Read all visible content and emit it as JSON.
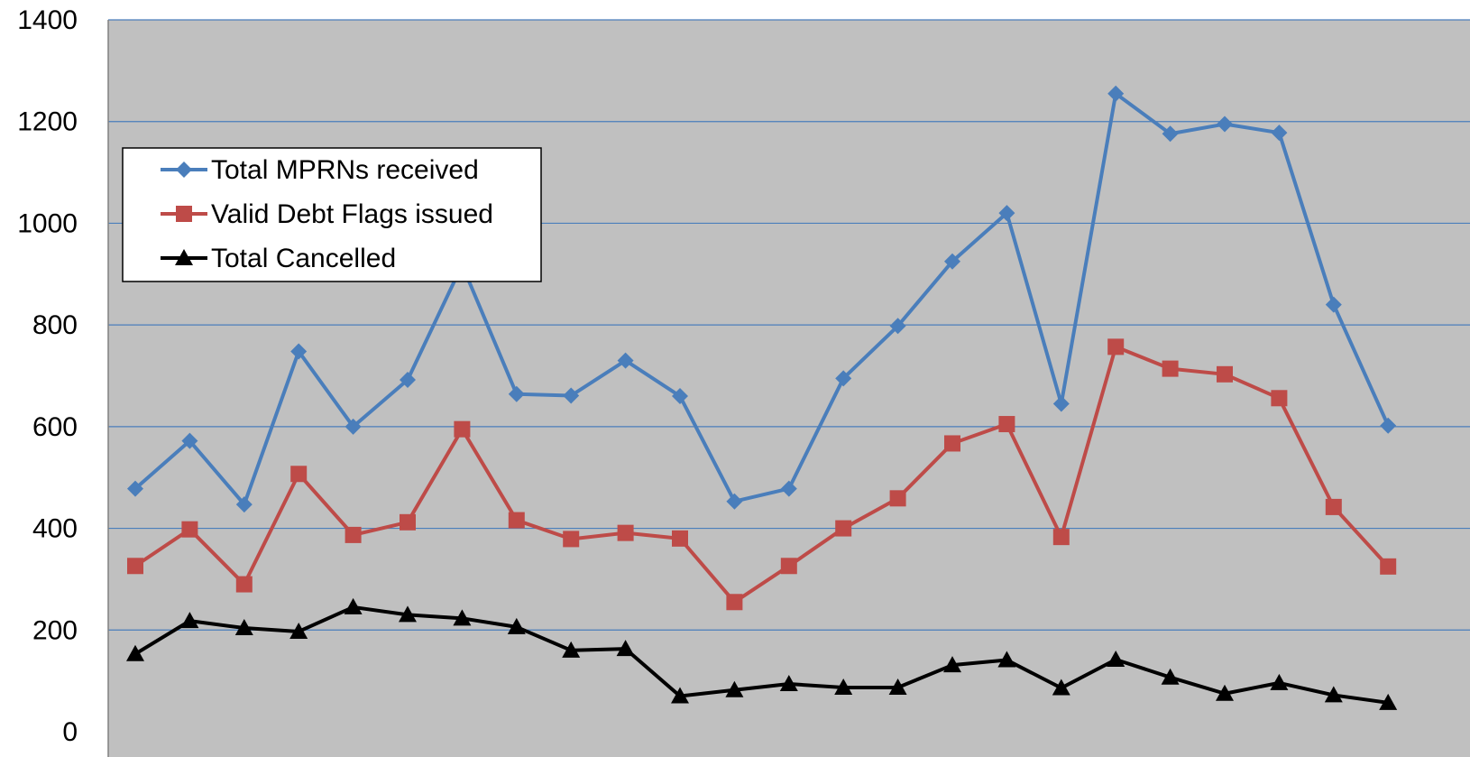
{
  "chart_data": {
    "type": "line",
    "title": "",
    "xlabel": "",
    "ylabel": "",
    "ylim": [
      0,
      1400
    ],
    "yticks": [
      "0",
      "200",
      "400",
      "600",
      "800",
      "1000",
      "1200",
      "1400"
    ],
    "grid": true,
    "legend_position": "top-left",
    "background": "#c0c0c0",
    "series": [
      {
        "name": "Total MPRNs received",
        "color": "#4a7ebb",
        "marker": "diamond",
        "values": [
          478,
          572,
          447,
          748,
          600,
          692,
          918,
          664,
          661,
          730,
          660,
          453,
          478,
          695,
          798,
          925,
          1020,
          645,
          1255,
          1176,
          1195,
          1178,
          840,
          602
        ]
      },
      {
        "name": "Valid Debt Flags issued",
        "color": "#be4b48",
        "marker": "square",
        "values": [
          326,
          398,
          290,
          507,
          387,
          412,
          595,
          416,
          379,
          391,
          380,
          255,
          326,
          400,
          459,
          567,
          605,
          383,
          757,
          714,
          703,
          656,
          442,
          325
        ]
      },
      {
        "name": "Total Cancelled",
        "color": "#000000",
        "marker": "triangle",
        "values": [
          153,
          218,
          204,
          197,
          245,
          230,
          223,
          206,
          160,
          163,
          70,
          82,
          94,
          87,
          87,
          131,
          141,
          86,
          142,
          107,
          75,
          96,
          72,
          57
        ]
      }
    ]
  }
}
